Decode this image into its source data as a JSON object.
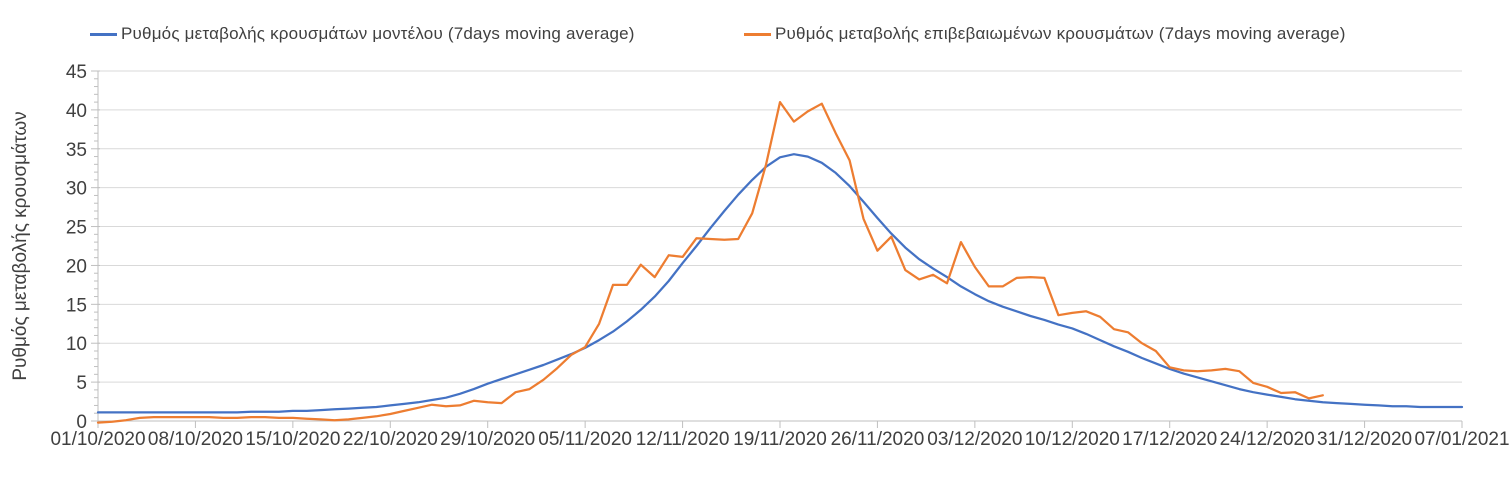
{
  "legend": {
    "items": [
      {
        "label": "Ρυθμός μεταβολής κρουσμάτων μοντέλου (7days moving average)",
        "color": "#4472C4"
      },
      {
        "label": "Ρυθμός μεταβολής επιβεβαιωμένων κρουσμάτων (7days moving average)",
        "color": "#ED7D31"
      }
    ]
  },
  "colors": {
    "background": "#FFFFFF",
    "axis": "#BFBFBF",
    "gridline": "#D9D9D9",
    "tick_label": "#404040",
    "series_model": "#4472C4",
    "series_confirmed": "#ED7D31"
  },
  "chart_data": {
    "type": "line",
    "title": "",
    "xlabel": "",
    "ylabel": "Ρυθμός μεταβολής κρουσμάτων",
    "ylim": [
      0,
      45
    ],
    "y_ticks": [
      0,
      5,
      10,
      15,
      20,
      25,
      30,
      35,
      40,
      45
    ],
    "y_minor_tick_step": 1,
    "grid": "horizontal-only",
    "legend_position": "top",
    "x_start_date": "01/10/2020",
    "x_end_date": "07/01/2021",
    "x_unit": "day",
    "x_tick_interval_days": 7,
    "x_tick_labels": [
      "01/10/2020",
      "08/10/2020",
      "15/10/2020",
      "22/10/2020",
      "29/10/2020",
      "05/11/2020",
      "12/11/2020",
      "19/11/2020",
      "26/11/2020",
      "03/12/2020",
      "10/12/2020",
      "17/12/2020",
      "24/12/2020",
      "31/12/2020",
      "07/01/2021"
    ],
    "series": [
      {
        "name": "Ρυθμός μεταβολής κρουσμάτων μοντέλου (7days moving average)",
        "color": "#4472C4",
        "start_day": 0,
        "values": [
          1.1,
          1.1,
          1.1,
          1.1,
          1.1,
          1.1,
          1.1,
          1.1,
          1.1,
          1.1,
          1.1,
          1.2,
          1.2,
          1.2,
          1.3,
          1.3,
          1.4,
          1.5,
          1.6,
          1.7,
          1.8,
          2.0,
          2.2,
          2.4,
          2.7,
          3.0,
          3.5,
          4.1,
          4.8,
          5.4,
          6.0,
          6.6,
          7.2,
          7.9,
          8.6,
          9.4,
          10.4,
          11.5,
          12.8,
          14.3,
          16.0,
          18.0,
          20.3,
          22.5,
          24.8,
          27.0,
          29.1,
          31.0,
          32.7,
          33.9,
          34.3,
          34.0,
          33.2,
          31.9,
          30.2,
          28.2,
          26.1,
          24.1,
          22.3,
          20.8,
          19.6,
          18.5,
          17.3,
          16.3,
          15.4,
          14.7,
          14.1,
          13.5,
          13.0,
          12.4,
          11.9,
          11.2,
          10.4,
          9.6,
          8.9,
          8.1,
          7.4,
          6.7,
          6.1,
          5.6,
          5.1,
          4.6,
          4.1,
          3.7,
          3.4,
          3.1,
          2.8,
          2.6,
          2.4,
          2.3,
          2.2,
          2.1,
          2.0,
          1.9,
          1.9,
          1.8,
          1.8,
          1.8,
          1.8
        ]
      },
      {
        "name": "Ρυθμός μεταβολής επιβεβαιωμένων κρουσμάτων (7days moving average)",
        "color": "#ED7D31",
        "start_day": 0,
        "values": [
          -0.2,
          -0.1,
          0.1,
          0.4,
          0.5,
          0.5,
          0.5,
          0.5,
          0.5,
          0.4,
          0.4,
          0.5,
          0.5,
          0.4,
          0.4,
          0.3,
          0.2,
          0.1,
          0.2,
          0.4,
          0.6,
          0.9,
          1.3,
          1.7,
          2.1,
          1.9,
          2.0,
          2.6,
          2.4,
          2.3,
          3.7,
          4.1,
          5.3,
          6.8,
          8.5,
          9.5,
          12.5,
          17.5,
          17.5,
          20.1,
          18.5,
          21.3,
          21.1,
          23.5,
          23.4,
          23.3,
          23.4,
          26.7,
          33.0,
          41.0,
          38.5,
          39.8,
          40.8,
          37.0,
          33.5,
          26.0,
          21.9,
          23.7,
          19.4,
          18.2,
          18.8,
          17.7,
          23.0,
          19.8,
          17.3,
          17.3,
          18.4,
          18.5,
          18.4,
          13.6,
          13.9,
          14.1,
          13.4,
          11.8,
          11.4,
          10.0,
          9.0,
          6.9,
          6.5,
          6.4,
          6.5,
          6.7,
          6.4,
          4.9,
          4.4,
          3.6,
          3.7,
          2.9,
          3.3
        ]
      }
    ]
  }
}
